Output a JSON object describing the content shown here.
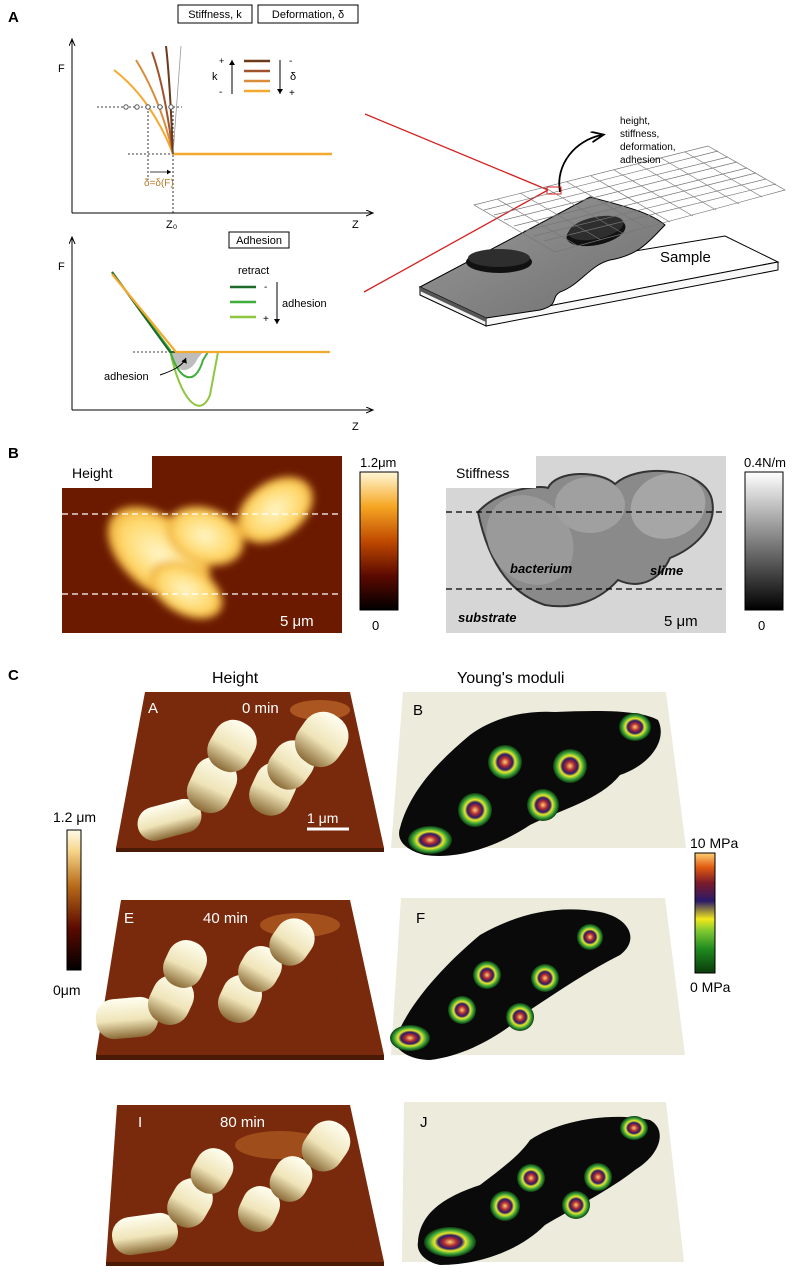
{
  "panel_a": {
    "label": "A",
    "stiffness_box": "Stiffness, k",
    "deformation_box": "Deformation, δ",
    "adhesion_box": "Adhesion",
    "axis_f": "F",
    "axis_z": "Z",
    "z0": "Z₀",
    "delta_eq": "δ=δ(F)",
    "k_label": "k",
    "delta_label": "δ",
    "plus": "+",
    "minus": "-",
    "retract": "retract",
    "adhesion_label": "adhesion",
    "adhesion_arrow_label": "adhesion",
    "grid_note": "height,\nstiffness,\ndeformation,\nadhesion",
    "sample": "Sample",
    "colors": {
      "stiff1": "#6b3a1b",
      "stiff2": "#a0522d",
      "stiff3": "#d98c3a",
      "stiff4": "#f4a92f",
      "ret1": "#1d6b2a",
      "ret2": "#3fae3a",
      "ret3": "#8ec63f",
      "approach": "#f4a92f"
    }
  },
  "panel_b": {
    "label": "B",
    "height_title": "Height",
    "height_scale_max": "1.2μm",
    "height_scale_min": "0",
    "height_bar": "5 μm",
    "stiff_title": "Stiffness",
    "stiff_scale_max": "0.4N/m",
    "stiff_scale_min": "0",
    "stiff_bar": "5 μm",
    "bacterium": "bacterium",
    "slime": "slime",
    "substrate": "substrate"
  },
  "panel_c": {
    "label": "C",
    "height_col": "Height",
    "young_col": "Young's moduli",
    "scale_left_max": "1.2 μm",
    "scale_left_min": "0μm",
    "scale_right_max": "10 MPa",
    "scale_right_min": "0 MPa",
    "scalebar": "1 μm",
    "tiles": [
      {
        "letter": "A",
        "time": "0 min"
      },
      {
        "letter": "B",
        "time": ""
      },
      {
        "letter": "E",
        "time": "40 min"
      },
      {
        "letter": "F",
        "time": ""
      },
      {
        "letter": "I",
        "time": "80 min"
      },
      {
        "letter": "J",
        "time": ""
      }
    ]
  }
}
